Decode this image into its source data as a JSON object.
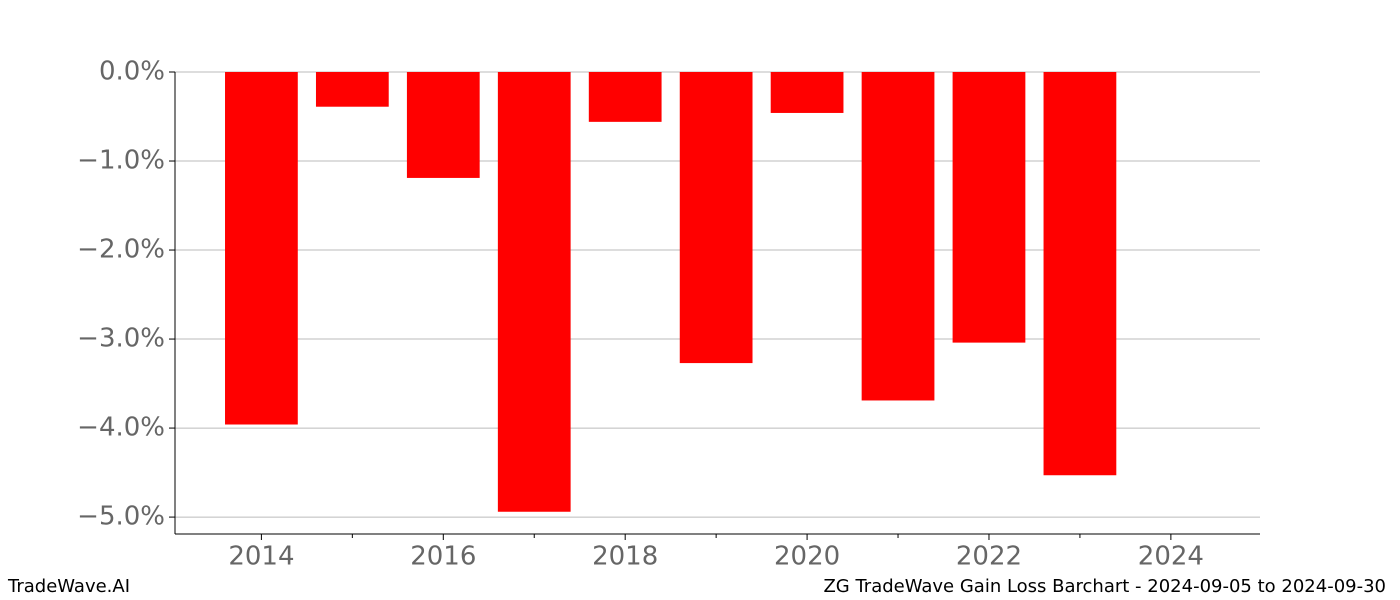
{
  "chart_data": {
    "type": "bar",
    "title": "ZG TradeWave Gain Loss Barchart - 2024-09-05 to 2024-09-30",
    "watermark": "TradeWave.AI",
    "x": [
      2014,
      2015,
      2016,
      2017,
      2018,
      2019,
      2020,
      2021,
      2022,
      2023
    ],
    "values": [
      -3.96,
      -0.39,
      -1.19,
      -4.94,
      -0.56,
      -3.27,
      -0.46,
      -3.69,
      -3.04,
      -4.53
    ],
    "color": "#ff0000",
    "xlim": [
      2013.05,
      2024.98
    ],
    "xticks": [
      2014,
      2016,
      2018,
      2020,
      2022,
      2024
    ],
    "xminor_ticks": [
      2015,
      2017,
      2019,
      2021,
      2023
    ],
    "ylim": [
      -5.19,
      0
    ],
    "yticks": [
      {
        "value": 0,
        "label": "0.0%"
      },
      {
        "value": -1,
        "label": "−1.0%"
      },
      {
        "value": -2,
        "label": "−2.0%"
      },
      {
        "value": -3,
        "label": "−3.0%"
      },
      {
        "value": -4,
        "label": "−4.0%"
      },
      {
        "value": -5,
        "label": "−5.0%"
      }
    ],
    "grid": true
  }
}
